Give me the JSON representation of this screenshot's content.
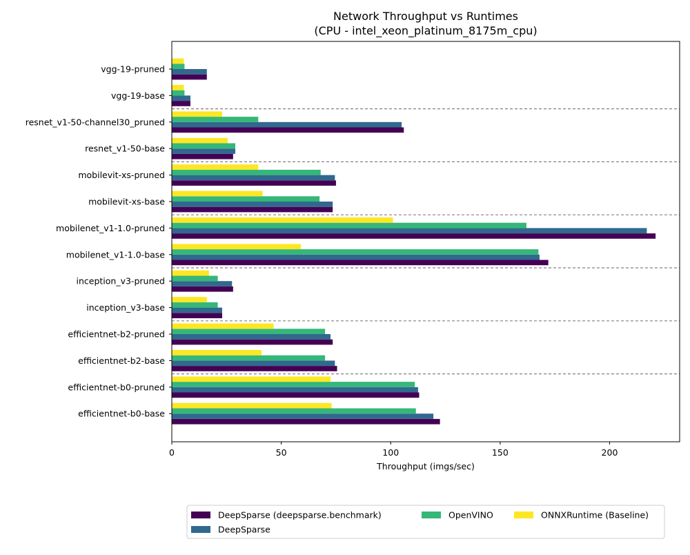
{
  "chart_data": {
    "type": "bar",
    "orientation": "horizontal",
    "title": "Network Throughput vs Runtimes",
    "subtitle": "(CPU - intel_xeon_platinum_8175m_cpu)",
    "xlabel": "Throughput (imgs/sec)",
    "ylabel": "",
    "xlim": [
      0,
      232
    ],
    "x_ticks": [
      0,
      50,
      100,
      150,
      200
    ],
    "grid": false,
    "legend_position": "bottom",
    "categories": [
      "vgg-19-pruned",
      "vgg-19-base",
      "resnet_v1-50-channel30_pruned",
      "resnet_v1-50-base",
      "mobilevit-xs-pruned",
      "mobilevit-xs-base",
      "mobilenet_v1-1.0-pruned",
      "mobilenet_v1-1.0-base",
      "inception_v3-pruned",
      "inception_v3-base",
      "efficientnet-b2-pruned",
      "efficientnet-b2-base",
      "efficientnet-b0-pruned",
      "efficientnet-b0-base"
    ],
    "group_separators_after": [
      "vgg-19-base",
      "resnet_v1-50-base",
      "mobilevit-xs-base",
      "mobilenet_v1-1.0-base",
      "inception_v3-base",
      "efficientnet-b2-base"
    ],
    "series": [
      {
        "name": "DeepSparse (deepsparse.benchmark)",
        "color": "#440154",
        "values": [
          16,
          8.5,
          106,
          28,
          75,
          73.5,
          221,
          172,
          28,
          23,
          73.5,
          75.5,
          113,
          122.5
        ]
      },
      {
        "name": "DeepSparse",
        "color": "#31688e",
        "values": [
          16,
          8.5,
          105,
          29,
          74.5,
          73.5,
          217,
          168,
          27.5,
          23,
          72.5,
          74.5,
          112.5,
          119.5
        ]
      },
      {
        "name": "OpenVINO",
        "color": "#35b779",
        "values": [
          5.8,
          5.8,
          39.5,
          29,
          68,
          67.5,
          162,
          167.5,
          21,
          21,
          70,
          70,
          111,
          111.5
        ]
      },
      {
        "name": "ONNXRuntime (Baseline)",
        "color": "#fde725",
        "values": [
          5.5,
          5.5,
          23,
          25.5,
          39.5,
          41.5,
          101,
          59,
          17,
          16,
          46.5,
          41,
          72.5,
          73
        ]
      }
    ]
  }
}
